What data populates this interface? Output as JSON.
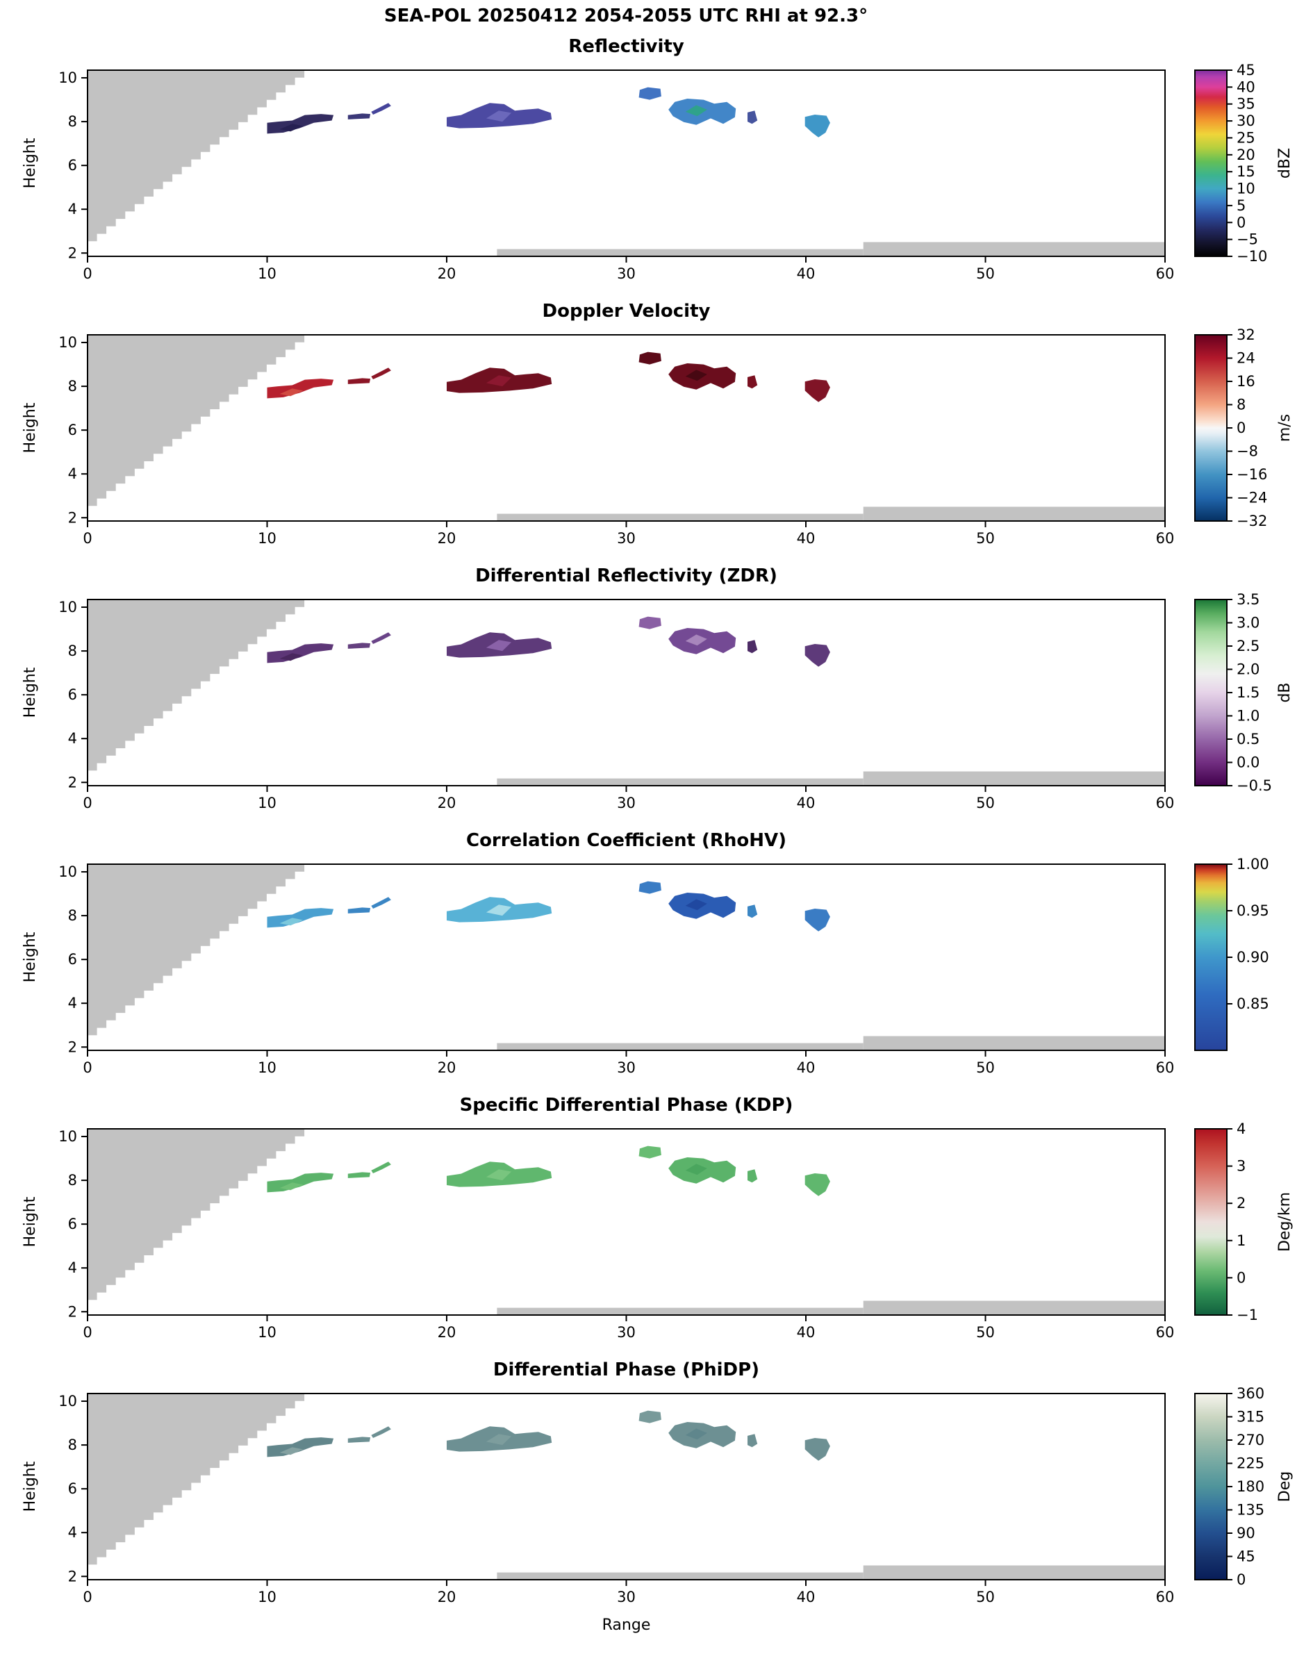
{
  "suptitle": "SEA-POL 20250412 2054-2055 UTC RHI at 92.3°",
  "chart_data": {
    "type": "heatmap",
    "xlabel": "Range",
    "ylabel": "Height",
    "xlim": [
      0,
      60
    ],
    "ylim": [
      1.85,
      10.35
    ],
    "x_ticks": [
      0,
      10,
      20,
      30,
      40,
      50,
      60
    ],
    "y_ticks": [
      2,
      4,
      6,
      8,
      10
    ],
    "grid": false,
    "mask_color": "#c2c2c2",
    "terrain_mask": {
      "top_x": 12.6,
      "base_h": 2.2
    },
    "ground_strips": [
      {
        "x0": 22.8,
        "x1": 43.2,
        "h": 2.18
      },
      {
        "x0": 43.2,
        "x1": 60.0,
        "h": 2.5
      }
    ],
    "echo_patches": [
      [
        [
          10.0,
          7.45
        ],
        [
          10.0,
          7.95
        ],
        [
          10.6,
          8.0
        ],
        [
          11.4,
          8.05
        ],
        [
          12.1,
          8.3
        ],
        [
          13.0,
          8.35
        ],
        [
          13.7,
          8.3
        ],
        [
          13.6,
          8.05
        ],
        [
          12.6,
          7.95
        ],
        [
          11.8,
          7.7
        ],
        [
          10.9,
          7.5
        ]
      ],
      [
        [
          14.5,
          8.1
        ],
        [
          14.5,
          8.3
        ],
        [
          15.3,
          8.37
        ],
        [
          15.75,
          8.35
        ],
        [
          15.7,
          8.15
        ]
      ],
      [
        [
          15.9,
          8.32
        ],
        [
          16.4,
          8.5
        ],
        [
          16.9,
          8.72
        ],
        [
          16.75,
          8.85
        ],
        [
          16.15,
          8.6
        ],
        [
          15.8,
          8.45
        ]
      ],
      [
        [
          20.0,
          7.78
        ],
        [
          20.0,
          8.2
        ],
        [
          20.8,
          8.3
        ],
        [
          21.6,
          8.6
        ],
        [
          22.4,
          8.85
        ],
        [
          23.2,
          8.8
        ],
        [
          23.8,
          8.5
        ],
        [
          24.4,
          8.55
        ],
        [
          25.1,
          8.6
        ],
        [
          25.8,
          8.4
        ],
        [
          25.85,
          8.1
        ],
        [
          24.8,
          7.9
        ],
        [
          23.5,
          7.8
        ],
        [
          22.0,
          7.72
        ],
        [
          20.7,
          7.7
        ]
      ],
      [
        [
          30.7,
          9.1
        ],
        [
          30.75,
          9.45
        ],
        [
          31.2,
          9.57
        ],
        [
          31.9,
          9.5
        ],
        [
          31.95,
          9.15
        ],
        [
          31.3,
          9.0
        ]
      ],
      [
        [
          32.35,
          8.55
        ],
        [
          32.7,
          8.9
        ],
        [
          33.4,
          9.05
        ],
        [
          34.3,
          9.0
        ],
        [
          34.9,
          8.82
        ],
        [
          35.6,
          8.9
        ],
        [
          36.1,
          8.6
        ],
        [
          36.05,
          8.2
        ],
        [
          35.4,
          7.9
        ],
        [
          34.7,
          8.15
        ],
        [
          33.9,
          7.85
        ],
        [
          33.2,
          7.98
        ],
        [
          32.6,
          8.25
        ]
      ],
      [
        [
          36.75,
          8.0
        ],
        [
          36.75,
          8.42
        ],
        [
          37.15,
          8.5
        ],
        [
          37.3,
          8.05
        ],
        [
          37.0,
          7.9
        ]
      ],
      [
        [
          39.95,
          7.8
        ],
        [
          39.95,
          8.22
        ],
        [
          40.5,
          8.32
        ],
        [
          41.15,
          8.27
        ],
        [
          41.35,
          7.95
        ],
        [
          41.1,
          7.5
        ],
        [
          40.7,
          7.28
        ],
        [
          40.35,
          7.5
        ]
      ]
    ],
    "speckles": [
      [
        [
          22.2,
          8.15
        ],
        [
          22.9,
          8.5
        ],
        [
          23.6,
          8.4
        ],
        [
          23.1,
          8.0
        ]
      ],
      [
        [
          33.3,
          8.45
        ],
        [
          33.9,
          8.75
        ],
        [
          34.5,
          8.55
        ],
        [
          33.95,
          8.25
        ]
      ],
      [
        [
          10.7,
          7.65
        ],
        [
          11.4,
          7.9
        ],
        [
          12.0,
          7.8
        ],
        [
          11.3,
          7.55
        ]
      ]
    ],
    "panels": [
      {
        "title": "Reflectivity",
        "units": "dBZ",
        "cbar_range": [
          -10,
          45
        ],
        "cbar_ticks": [
          [
            45,
            "45"
          ],
          [
            40,
            "40"
          ],
          [
            35,
            "35"
          ],
          [
            30,
            "30"
          ],
          [
            25,
            "25"
          ],
          [
            20,
            "20"
          ],
          [
            15,
            "15"
          ],
          [
            10,
            "10"
          ],
          [
            5,
            "5"
          ],
          [
            0,
            "0"
          ],
          [
            -5,
            "−5"
          ],
          [
            -10,
            "−10"
          ]
        ],
        "cbar_stops": [
          [
            -10,
            "#000000"
          ],
          [
            -6,
            "#14142e"
          ],
          [
            -2,
            "#232a63"
          ],
          [
            2,
            "#2c4b9c"
          ],
          [
            6,
            "#3a79c4"
          ],
          [
            10,
            "#41a8c3"
          ],
          [
            14,
            "#3cb48e"
          ],
          [
            18,
            "#63bf57"
          ],
          [
            22,
            "#b5cf3e"
          ],
          [
            26,
            "#efd539"
          ],
          [
            30,
            "#f29b2f"
          ],
          [
            34,
            "#e25a28"
          ],
          [
            37,
            "#d42a47"
          ],
          [
            40,
            "#dd3f9b"
          ],
          [
            43,
            "#b43fb0"
          ],
          [
            45,
            "#7e2f9e"
          ]
        ],
        "patch_colors": [
          "#332c60",
          "#3b3878",
          "#45449a",
          "#4c4aa2",
          "#4173c2",
          "#4286c8",
          "#46549e",
          "#3f97c8"
        ],
        "speckle_colors": [
          "#6b68bb",
          "#2fa28b",
          "#262052"
        ]
      },
      {
        "title": "Doppler Velocity",
        "units": "m/s",
        "cbar_range": [
          -32,
          32
        ],
        "cbar_ticks": [
          [
            32,
            "32"
          ],
          [
            24,
            "24"
          ],
          [
            16,
            "16"
          ],
          [
            8,
            "8"
          ],
          [
            0,
            "0"
          ],
          [
            -8,
            "−8"
          ],
          [
            -16,
            "−16"
          ],
          [
            -24,
            "−24"
          ],
          [
            -32,
            "−32"
          ]
        ],
        "cbar_stops": [
          [
            -32,
            "#053061"
          ],
          [
            -24,
            "#2166ac"
          ],
          [
            -16,
            "#4393c3"
          ],
          [
            -8,
            "#92c5de"
          ],
          [
            -2,
            "#e6eff5"
          ],
          [
            0,
            "#f7f7f7"
          ],
          [
            2,
            "#fbe3d4"
          ],
          [
            8,
            "#f4a582"
          ],
          [
            16,
            "#d6604d"
          ],
          [
            24,
            "#b2182b"
          ],
          [
            32,
            "#67001f"
          ]
        ],
        "patch_colors": [
          "#b7202e",
          "#8c1626",
          "#8c1626",
          "#701020",
          "#5c0a18",
          "#6b0d1d",
          "#7a1020",
          "#801426"
        ],
        "speckle_colors": [
          "#8c1830",
          "#470812",
          "#d14b42"
        ]
      },
      {
        "title": "Differential Reflectivity (ZDR)",
        "units": "dB",
        "cbar_range": [
          -0.5,
          3.5
        ],
        "cbar_ticks": [
          [
            3.5,
            "3.5"
          ],
          [
            3.0,
            "3.0"
          ],
          [
            2.5,
            "2.5"
          ],
          [
            2.0,
            "2.0"
          ],
          [
            1.5,
            "1.5"
          ],
          [
            1.0,
            "1.0"
          ],
          [
            0.5,
            "0.5"
          ],
          [
            0.0,
            "0.0"
          ],
          [
            -0.5,
            "−0.5"
          ]
        ],
        "cbar_stops": [
          [
            -0.5,
            "#40004b"
          ],
          [
            0,
            "#722e81"
          ],
          [
            0.5,
            "#9667a9"
          ],
          [
            1.0,
            "#c1a4cd"
          ],
          [
            1.5,
            "#e6d3e8"
          ],
          [
            1.9,
            "#eff0ef"
          ],
          [
            2.3,
            "#d7efd1"
          ],
          [
            2.8,
            "#a2d89d"
          ],
          [
            3.2,
            "#59ad60"
          ],
          [
            3.5,
            "#1b7837"
          ]
        ],
        "patch_colors": [
          "#5d3677",
          "#64407f",
          "#6a4488",
          "#5e3a7a",
          "#8a5fa4",
          "#744a94",
          "#4d2c66",
          "#5e3a7a"
        ],
        "speckle_colors": [
          "#8a62a8",
          "#a886bc",
          "#49275e"
        ]
      },
      {
        "title": "Correlation Coefficient (RhoHV)",
        "units": "",
        "cbar_range": [
          0.8,
          1.0
        ],
        "cbar_ticks": [
          [
            1.0,
            "1.00"
          ],
          [
            0.95,
            "0.95"
          ],
          [
            0.9,
            "0.90"
          ],
          [
            0.85,
            "0.85"
          ]
        ],
        "cbar_stops": [
          [
            0.8,
            "#27449c"
          ],
          [
            0.86,
            "#2f6cc0"
          ],
          [
            0.9,
            "#3f97cb"
          ],
          [
            0.925,
            "#53bcc8"
          ],
          [
            0.945,
            "#6cc79a"
          ],
          [
            0.96,
            "#a4d06a"
          ],
          [
            0.97,
            "#d8d84a"
          ],
          [
            0.98,
            "#eab43c"
          ],
          [
            0.988,
            "#e2732d"
          ],
          [
            0.994,
            "#c93a22"
          ],
          [
            1.0,
            "#7a0a14"
          ]
        ],
        "patch_colors": [
          "#4aa0d0",
          "#3b86c4",
          "#3b86c4",
          "#58b2d6",
          "#3a7cc4",
          "#2b5cb4",
          "#3b86c4",
          "#3a7cc4"
        ],
        "speckle_colors": [
          "#a8dce8",
          "#2048a0",
          "#7cc8dc"
        ]
      },
      {
        "title": "Specific Differential Phase (KDP)",
        "units": "Deg/km",
        "cbar_range": [
          -1,
          4
        ],
        "cbar_ticks": [
          [
            4,
            "4"
          ],
          [
            3,
            "3"
          ],
          [
            2,
            "2"
          ],
          [
            1,
            "1"
          ],
          [
            0,
            "0"
          ],
          [
            -1,
            "−1"
          ]
        ],
        "cbar_stops": [
          [
            -1,
            "#11603e"
          ],
          [
            -0.4,
            "#2f8f54"
          ],
          [
            0.2,
            "#6cbb74"
          ],
          [
            0.7,
            "#aed6a4"
          ],
          [
            1.1,
            "#dfe9da"
          ],
          [
            1.5,
            "#ecdfdc"
          ],
          [
            2.2,
            "#e3a49c"
          ],
          [
            3.0,
            "#d66257"
          ],
          [
            3.6,
            "#c23430"
          ],
          [
            4,
            "#ad1220"
          ]
        ],
        "patch_colors": [
          "#5bb36a",
          "#5bb36a",
          "#5bb36a",
          "#60b76e",
          "#68bc72",
          "#5bb36a",
          "#5bb36a",
          "#60b76e"
        ],
        "speckle_colors": [
          "#79c57f",
          "#4aa65e",
          "#6fbf75"
        ]
      },
      {
        "title": "Differential Phase (PhiDP)",
        "units": "Deg",
        "cbar_range": [
          0,
          360
        ],
        "cbar_ticks": [
          [
            360,
            "360"
          ],
          [
            315,
            "315"
          ],
          [
            270,
            "270"
          ],
          [
            225,
            "225"
          ],
          [
            180,
            "180"
          ],
          [
            135,
            "135"
          ],
          [
            90,
            "90"
          ],
          [
            45,
            "45"
          ],
          [
            0,
            "0"
          ]
        ],
        "cbar_stops": [
          [
            0,
            "#081d58"
          ],
          [
            45,
            "#17346e"
          ],
          [
            90,
            "#234f8f"
          ],
          [
            135,
            "#33729f"
          ],
          [
            180,
            "#4f949b"
          ],
          [
            225,
            "#74a8a2"
          ],
          [
            270,
            "#9dbcab"
          ],
          [
            315,
            "#cbd6c2"
          ],
          [
            360,
            "#f7f5ee"
          ]
        ],
        "patch_colors": [
          "#62868b",
          "#6d9093",
          "#6d9093",
          "#6d9093",
          "#789a9a",
          "#6d9093",
          "#6d9093",
          "#6d9093"
        ],
        "speckle_colors": [
          "#7d9d9d",
          "#5f868c",
          "#84a1a1"
        ]
      }
    ]
  }
}
